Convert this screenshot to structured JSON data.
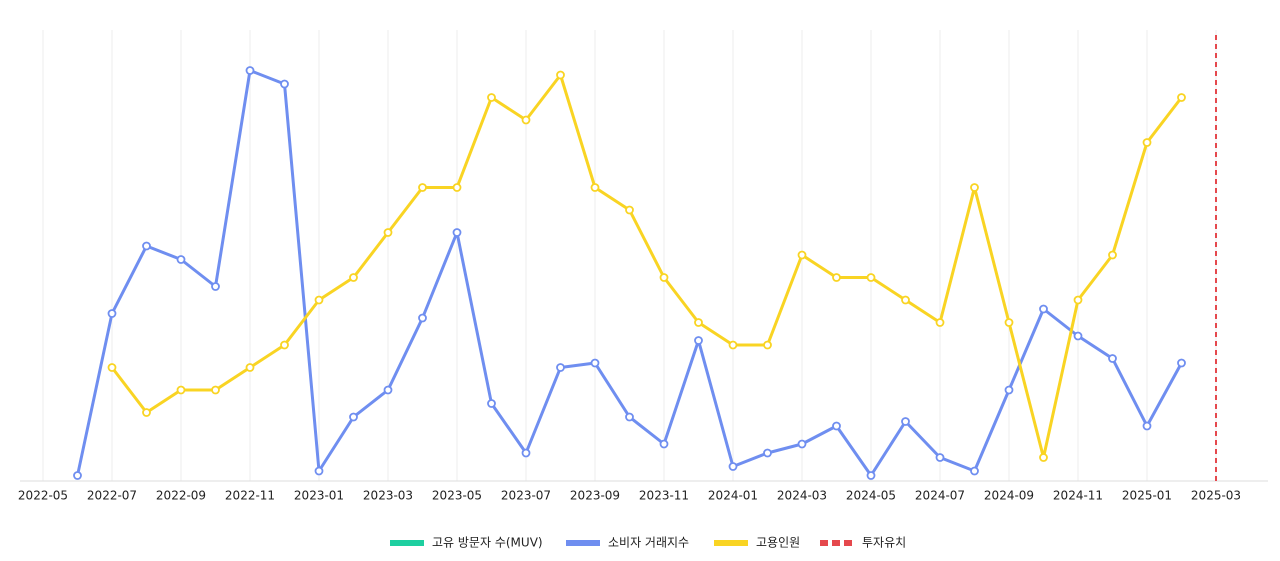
{
  "chart_data": {
    "type": "line",
    "categories": [
      "2022-05",
      null,
      "2022-07",
      null,
      "2022-09",
      null,
      "2022-11",
      null,
      "2023-01",
      null,
      "2023-03",
      null,
      "2023-05",
      null,
      "2023-07",
      null,
      "2023-09",
      null,
      "2023-11",
      null,
      "2024-01",
      null,
      "2024-03",
      null,
      "2024-05",
      null,
      "2024-07",
      null,
      "2024-09",
      null,
      "2024-11",
      null,
      "2025-01",
      null,
      "2025-03"
    ],
    "ylim": [
      0,
      100
    ],
    "grid": true,
    "legend": "bottom",
    "series": [
      {
        "name": "고유 방문자 수(MUV)",
        "color": "#1ecfa0",
        "values": [
          null,
          null,
          null,
          null,
          null,
          null,
          null,
          null,
          null,
          null,
          null,
          null,
          null,
          null,
          null,
          null,
          null,
          null,
          null,
          null,
          null,
          null,
          null,
          null,
          null,
          null,
          null,
          null,
          null,
          null,
          null,
          null,
          null,
          null,
          null
        ]
      },
      {
        "name": "소비자 거래지수",
        "color": "#6f8ef0",
        "values": [
          null,
          1,
          37,
          52,
          49,
          43,
          91,
          88,
          2,
          14,
          20,
          36,
          55,
          17,
          6,
          25,
          26,
          14,
          8,
          31,
          3,
          6,
          8,
          12,
          1,
          13,
          5,
          2,
          20,
          38,
          32,
          27,
          12,
          26,
          null
        ]
      },
      {
        "name": "고용인원",
        "color": "#f9d423",
        "values": [
          null,
          null,
          25,
          15,
          20,
          20,
          25,
          30,
          40,
          45,
          55,
          65,
          65,
          85,
          80,
          90,
          65,
          60,
          45,
          35,
          30,
          30,
          50,
          45,
          45,
          40,
          35,
          65,
          35,
          5,
          40,
          50,
          75,
          85,
          null
        ]
      }
    ],
    "events": [
      {
        "name": "투자유치",
        "color": "#e5484d",
        "x": "2025-03"
      }
    ]
  }
}
